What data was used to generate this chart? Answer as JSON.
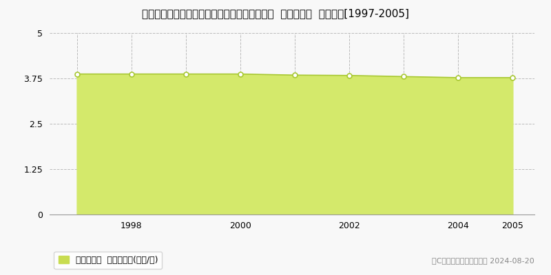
{
  "title": "福島県岩瀬郡天栄村大字飯豊字宮ノ下３２番１  基準地価格  地価推移[1997-2005]",
  "years": [
    1997,
    1998,
    1999,
    2000,
    2001,
    2002,
    2003,
    2004,
    2005
  ],
  "values": [
    3.87,
    3.87,
    3.87,
    3.87,
    3.84,
    3.83,
    3.8,
    3.77,
    3.77
  ],
  "ylim": [
    0,
    5
  ],
  "yticks": [
    0,
    1.25,
    2.5,
    3.75,
    5
  ],
  "ytick_labels": [
    "0",
    "1.25",
    "2.5",
    "3.75",
    "5"
  ],
  "xticks": [
    1998,
    2000,
    2002,
    2004,
    2005
  ],
  "fill_color": "#d4e96b",
  "line_color": "#a8c832",
  "marker_facecolor": "#ffffff",
  "marker_edgecolor": "#a8c832",
  "grid_color": "#bbbbbb",
  "bg_color": "#f8f8f8",
  "plot_bg_color": "#f8f8f8",
  "legend_label": "基準地価格  平均坪単価(万円/坪)",
  "legend_color": "#c8dc50",
  "copyright_text": "（C）土地価格ドットコム 2024-08-20",
  "title_fontsize": 11,
  "axis_fontsize": 9,
  "legend_fontsize": 9,
  "copyright_fontsize": 8,
  "xlim_left": 1996.5,
  "xlim_right": 2005.4
}
